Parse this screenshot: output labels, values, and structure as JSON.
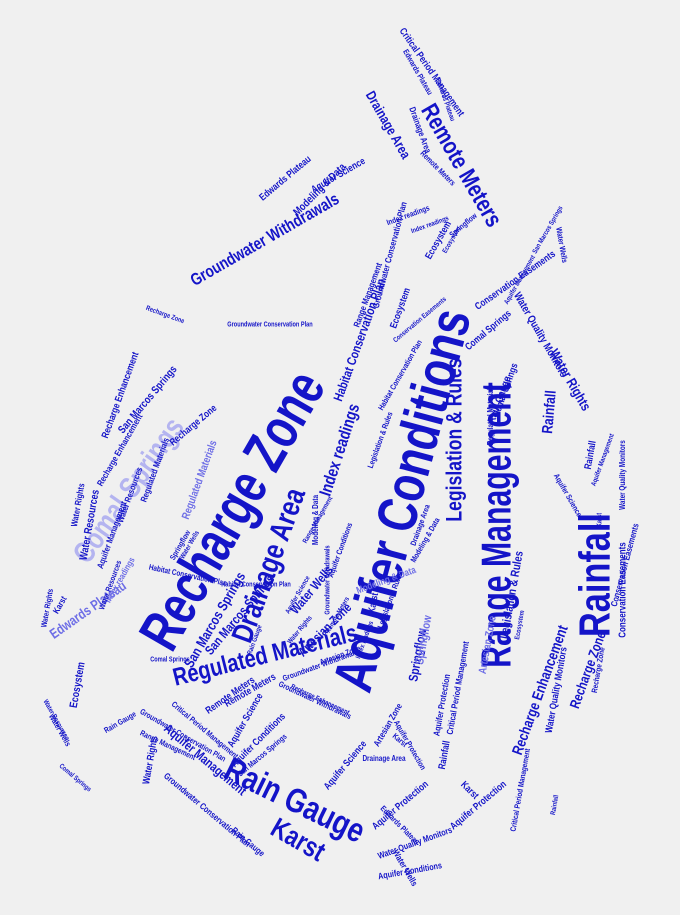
{
  "colors": {
    "background": "#f0f0f0",
    "primary": "#1414c8",
    "dark": "#10108c",
    "light": "#6e6ee6",
    "pale": "#b4b4f0"
  },
  "words": [
    {
      "text": "Aquifer Conditions",
      "c": "primary"
    },
    {
      "text": "Recharge Zone",
      "c": "primary"
    },
    {
      "text": "Range Management",
      "c": "primary"
    },
    {
      "text": "Rainfall",
      "c": "primary"
    },
    {
      "text": "Rain Gauge",
      "c": "primary"
    },
    {
      "text": "Comal Springs",
      "c": "pale"
    },
    {
      "text": "Regulated Materials",
      "c": "primary"
    },
    {
      "text": "Drainage Area",
      "c": "primary"
    },
    {
      "text": "Remote Meters",
      "c": "primary"
    },
    {
      "text": "Groundwater Withdrawals",
      "c": "primary"
    },
    {
      "text": "Legislation & Rules",
      "c": "primary"
    },
    {
      "text": "Karst",
      "c": "primary"
    },
    {
      "text": "San Marcos Springs",
      "c": "primary"
    },
    {
      "text": "Index readings",
      "c": "primary"
    },
    {
      "text": "Water Rights",
      "c": "primary"
    },
    {
      "text": "Rainfall",
      "c": "primary"
    },
    {
      "text": "Recharge Zone",
      "c": "primary"
    },
    {
      "text": "Recharge Enhancement",
      "c": "primary"
    },
    {
      "text": "Aquifer Management",
      "c": "primary"
    },
    {
      "text": "Water Quality Monitors",
      "c": "primary"
    },
    {
      "text": "Water Resources",
      "c": "primary"
    },
    {
      "text": "Edwards Plateau",
      "c": "light"
    },
    {
      "text": "Drainage Area",
      "c": "primary"
    },
    {
      "text": "Critical Period Management",
      "c": "primary"
    },
    {
      "text": "Habitat Conservation Plan",
      "c": "primary"
    },
    {
      "text": "Modeling & Data",
      "c": "primary"
    },
    {
      "text": "Aquifer Science",
      "c": "primary"
    },
    {
      "text": "Conservation Easements",
      "c": "primary"
    },
    {
      "text": "Aquifer Protection",
      "c": "primary"
    },
    {
      "text": "Groundwater Conservation Plan",
      "c": "primary"
    },
    {
      "text": "Water Wells",
      "c": "primary"
    },
    {
      "text": "Artesian Zone",
      "c": "primary"
    },
    {
      "text": "Springflow",
      "c": "primary"
    },
    {
      "text": "Ecosystem",
      "c": "primary"
    },
    {
      "text": "Water Rights",
      "c": "primary"
    },
    {
      "text": "Aquifer Conditions",
      "c": "primary"
    },
    {
      "text": "Rain Gauge",
      "c": "primary"
    },
    {
      "text": "Recharge Zone",
      "c": "primary"
    },
    {
      "text": "Ecosystem",
      "c": "primary"
    },
    {
      "text": "Water Wells",
      "c": "primary"
    },
    {
      "text": "Groundwater Conservation Plan",
      "c": "primary"
    },
    {
      "text": "Range Management",
      "c": "primary"
    },
    {
      "text": "Legislation & Rules",
      "c": "primary"
    },
    {
      "text": "Remote Meters",
      "c": "primary"
    },
    {
      "text": "Aquifer Science",
      "c": "primary"
    },
    {
      "text": "Comal Springs",
      "c": "primary"
    },
    {
      "text": "Conservation Easements",
      "c": "primary"
    },
    {
      "text": "Springflow",
      "c": "light"
    },
    {
      "text": "Artesian Zone",
      "c": "light"
    },
    {
      "text": "Modeling & Data",
      "c": "light"
    },
    {
      "text": "Edwards Plateau",
      "c": "primary"
    },
    {
      "text": "Karst",
      "c": "primary"
    },
    {
      "text": "San Marcos Springs",
      "c": "primary"
    },
    {
      "text": "Water Resources",
      "c": "primary"
    },
    {
      "text": "Habitat Conservation Plan",
      "c": "primary"
    },
    {
      "text": "Groundwater Withdrawals",
      "c": "primary"
    },
    {
      "text": "Aquifer Protection",
      "c": "primary"
    },
    {
      "text": "Critical Period Management",
      "c": "primary"
    },
    {
      "text": "Regulated Materials",
      "c": "light"
    },
    {
      "text": "Index readings",
      "c": "light"
    },
    {
      "text": "Rainfall",
      "c": "primary"
    },
    {
      "text": "Karst",
      "c": "primary"
    },
    {
      "text": "Water Quality Monitors",
      "c": "primary"
    },
    {
      "text": "Drainage Area",
      "c": "primary"
    },
    {
      "text": "Aquifer Management",
      "c": "primary"
    },
    {
      "text": "Recharge Enhancement",
      "c": "primary"
    },
    {
      "text": "Water Rights",
      "c": "primary"
    },
    {
      "text": "Rain Gauge",
      "c": "primary"
    },
    {
      "text": "Ecosystem",
      "c": "primary"
    },
    {
      "text": "Water Wells",
      "c": "primary"
    },
    {
      "text": "Aquifer Conditions",
      "c": "primary"
    },
    {
      "text": "Comal Springs",
      "c": "primary"
    },
    {
      "text": "Artesian Zone",
      "c": "primary"
    },
    {
      "text": "Aquifer Science",
      "c": "primary"
    },
    {
      "text": "San Marcos Springs",
      "c": "primary"
    },
    {
      "text": "Edwards Plateau",
      "c": "primary"
    },
    {
      "text": "Remote Meters",
      "c": "primary"
    },
    {
      "text": "Habitat Conservation Plan",
      "c": "primary"
    },
    {
      "text": "Index readings",
      "c": "primary"
    },
    {
      "text": "Modeling & Data",
      "c": "primary"
    },
    {
      "text": "Water Resources",
      "c": "primary"
    },
    {
      "text": "Regulated Materials",
      "c": "primary"
    },
    {
      "text": "Karst",
      "c": "primary"
    },
    {
      "text": "Recharge Zone",
      "c": "primary"
    },
    {
      "text": "Springflow",
      "c": "primary"
    },
    {
      "text": "Aquifer Protection",
      "c": "primary"
    },
    {
      "text": "Groundwater Conservation Plan",
      "c": "primary"
    },
    {
      "text": "Range Management",
      "c": "primary"
    },
    {
      "text": "Legislation & Rules",
      "c": "primary"
    },
    {
      "text": "Conservation Easements",
      "c": "primary"
    },
    {
      "text": "Water Quality Monitors",
      "c": "primary"
    },
    {
      "text": "Rainfall",
      "c": "primary"
    },
    {
      "text": "Critical Period Management",
      "c": "primary"
    },
    {
      "text": "Drainage Area",
      "c": "primary"
    },
    {
      "text": "Groundwater Withdrawals",
      "c": "primary"
    },
    {
      "text": "Recharge Enhancement",
      "c": "primary"
    },
    {
      "text": "Aquifer Management",
      "c": "primary"
    },
    {
      "text": "Water Rights",
      "c": "primary"
    },
    {
      "text": "Rain Gauge",
      "c": "primary"
    },
    {
      "text": "Ecosystem",
      "c": "primary"
    },
    {
      "text": "Water Wells",
      "c": "primary"
    },
    {
      "text": "Comal Springs",
      "c": "primary"
    },
    {
      "text": "San Marcos Springs",
      "c": "primary"
    },
    {
      "text": "Edwards Plateau",
      "c": "primary"
    },
    {
      "text": "Aquifer Science",
      "c": "primary"
    },
    {
      "text": "Remote Meters",
      "c": "primary"
    },
    {
      "text": "Index readings",
      "c": "primary"
    },
    {
      "text": "Habitat Conservation Plan",
      "c": "primary"
    },
    {
      "text": "Modeling & Data",
      "c": "primary"
    },
    {
      "text": "Karst",
      "c": "primary"
    },
    {
      "text": "Artesian Zone",
      "c": "primary"
    },
    {
      "text": "Recharge Zone",
      "c": "primary"
    },
    {
      "text": "Aquifer Conditions",
      "c": "primary"
    },
    {
      "text": "Water Resources",
      "c": "primary"
    },
    {
      "text": "Regulated Materials",
      "c": "primary"
    },
    {
      "text": "Springflow",
      "c": "primary"
    },
    {
      "text": "Aquifer Protection",
      "c": "primary"
    },
    {
      "text": "Groundwater Conservation Plan",
      "c": "primary"
    },
    {
      "text": "Legislation & Rules",
      "c": "primary"
    },
    {
      "text": "Drainage Area",
      "c": "primary"
    },
    {
      "text": "Conservation Easements",
      "c": "primary"
    },
    {
      "text": "Water Quality Monitors",
      "c": "primary"
    },
    {
      "text": "Rainfall",
      "c": "primary"
    },
    {
      "text": "Critical Period Management",
      "c": "primary"
    },
    {
      "text": "Groundwater Withdrawals",
      "c": "primary"
    },
    {
      "text": "Recharge Enhancement",
      "c": "primary"
    },
    {
      "text": "Aquifer Management",
      "c": "primary"
    },
    {
      "text": "Water Rights",
      "c": "primary"
    },
    {
      "text": "Rain Gauge",
      "c": "primary"
    },
    {
      "text": "Ecosystem",
      "c": "primary"
    },
    {
      "text": "Water Wells",
      "c": "primary"
    },
    {
      "text": "Comal Springs",
      "c": "primary"
    },
    {
      "text": "San Marcos Springs",
      "c": "primary"
    },
    {
      "text": "Edwards Plateau",
      "c": "primary"
    },
    {
      "text": "Range Management",
      "c": "primary"
    },
    {
      "text": "Remote Meters",
      "c": "primary"
    },
    {
      "text": "Aquifer Science",
      "c": "primary"
    },
    {
      "text": "Index readings",
      "c": "primary"
    },
    {
      "text": "Karst",
      "c": "primary"
    },
    {
      "text": "Habitat Conservation Plan",
      "c": "primary"
    },
    {
      "text": "Modeling & Data",
      "c": "primary"
    }
  ]
}
